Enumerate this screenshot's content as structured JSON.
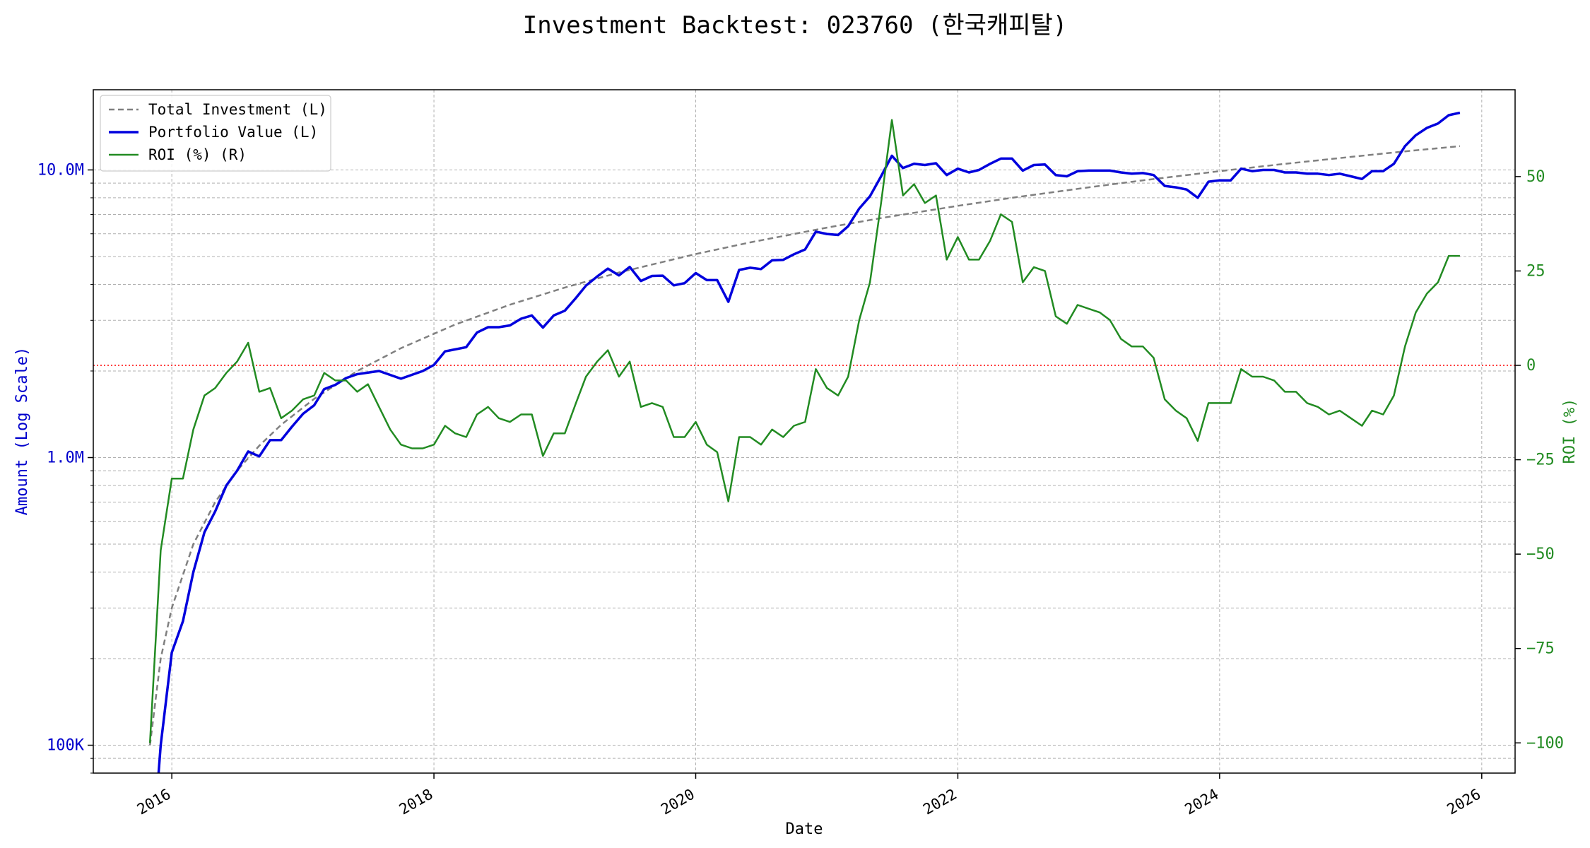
{
  "chart_data": {
    "type": "line",
    "title": "Investment Backtest: 023760 (한국캐피탈)",
    "xlabel": "Date",
    "ylabel_left": "Amount (Log Scale)",
    "ylabel_right": "ROI (%)",
    "x_ticks": [
      "2016",
      "2018",
      "2020",
      "2022",
      "2024",
      "2026"
    ],
    "y_left_scale": "log",
    "y_left_range": [
      80000,
      19000000
    ],
    "y_left_ticks": [
      {
        "value": 100000,
        "label": "100K"
      },
      {
        "value": 1000000,
        "label": "1.0M"
      },
      {
        "value": 10000000,
        "label": "10.0M"
      }
    ],
    "y_right_range": [
      -108,
      73
    ],
    "y_right_ticks": [
      {
        "value": -100,
        "label": "−100"
      },
      {
        "value": -75,
        "label": "−75"
      },
      {
        "value": -50,
        "label": "−50"
      },
      {
        "value": -25,
        "label": "−25"
      },
      {
        "value": 0,
        "label": "0"
      },
      {
        "value": 25,
        "label": "25"
      },
      {
        "value": 50,
        "label": "50"
      }
    ],
    "x_range": [
      "2015-05-27",
      "2026-04-04"
    ],
    "grid": true,
    "legend_position": "top-left",
    "reference_line": {
      "axis": "right",
      "value": 0,
      "color": "#ff0000",
      "style": "dotted"
    },
    "series": [
      {
        "name": "Total Investment (L)",
        "axis": "left",
        "color": "#808080",
        "style": "dashed",
        "x": [
          "2015-11-01",
          "2015-12-01",
          "2016-01-01",
          "2016-03-01",
          "2016-05-01",
          "2016-07-01",
          "2016-09-01",
          "2016-11-01",
          "2017-02-01",
          "2017-06-01",
          "2017-10-01",
          "2018-03-01",
          "2018-08-01",
          "2019-01-01",
          "2019-06-01",
          "2020-01-01",
          "2020-06-01",
          "2021-01-01",
          "2021-06-01",
          "2022-01-01",
          "2022-06-01",
          "2023-01-01",
          "2023-06-01",
          "2024-01-01",
          "2024-06-01",
          "2025-01-01",
          "2025-06-01",
          "2025-11-01"
        ],
        "values": [
          100000,
          200000,
          300000,
          500000,
          700000,
          900000,
          1100000,
          1300000,
          1600000,
          2000000,
          2400000,
          2900000,
          3400000,
          3900000,
          4400000,
          5100000,
          5600000,
          6300000,
          6800000,
          7500000,
          8000000,
          8700000,
          9200000,
          9900000,
          10400000,
          11100000,
          11600000,
          12100000
        ]
      },
      {
        "name": "Portfolio Value (L)",
        "axis": "left",
        "color": "#0000dd",
        "style": "solid",
        "x": [
          "2015-11-25",
          "2015-12-01",
          "2016-01-01",
          "2016-02-01",
          "2016-03-01",
          "2016-04-01",
          "2016-05-01",
          "2016-06-01",
          "2016-07-01",
          "2016-08-01",
          "2016-09-01",
          "2016-10-01",
          "2016-11-01",
          "2016-12-01",
          "2017-01-01",
          "2017-02-01",
          "2017-03-01",
          "2017-04-01",
          "2017-05-01",
          "2017-06-01",
          "2017-08-01",
          "2017-10-01",
          "2017-12-01",
          "2018-01-01",
          "2018-02-01",
          "2018-04-01",
          "2018-05-01",
          "2018-06-01",
          "2018-07-01",
          "2018-08-01",
          "2018-09-01",
          "2018-10-01",
          "2018-11-01",
          "2018-12-01",
          "2019-01-01",
          "2019-02-01",
          "2019-03-01",
          "2019-04-01",
          "2019-05-01",
          "2019-06-01",
          "2019-07-01",
          "2019-08-01",
          "2019-09-01",
          "2019-10-01",
          "2019-11-01",
          "2019-12-01",
          "2020-01-01",
          "2020-02-01",
          "2020-03-01",
          "2020-04-01",
          "2020-05-01",
          "2020-06-01",
          "2020-07-01",
          "2020-08-01",
          "2020-09-01",
          "2020-10-01",
          "2020-11-01",
          "2020-12-01",
          "2021-01-01",
          "2021-02-01",
          "2021-03-01",
          "2021-04-01",
          "2021-05-01",
          "2021-06-01",
          "2021-07-01",
          "2021-08-01",
          "2021-09-01",
          "2021-10-01",
          "2021-11-01",
          "2021-12-01",
          "2022-01-01",
          "2022-02-01",
          "2022-03-01",
          "2022-04-01",
          "2022-05-01",
          "2022-06-01",
          "2022-07-01",
          "2022-08-01",
          "2022-09-01",
          "2022-10-01",
          "2022-11-01",
          "2022-12-01",
          "2023-01-01",
          "2023-02-01",
          "2023-03-01",
          "2023-04-01",
          "2023-05-01",
          "2023-06-01",
          "2023-07-01",
          "2023-08-01",
          "2023-09-01",
          "2023-10-01",
          "2023-11-01",
          "2023-12-01",
          "2024-01-01",
          "2024-02-01",
          "2024-03-01",
          "2024-04-01",
          "2024-05-01",
          "2024-06-01",
          "2024-07-01",
          "2024-08-01",
          "2024-09-01",
          "2024-10-01",
          "2024-11-01",
          "2024-12-01",
          "2025-01-01",
          "2025-02-01",
          "2025-03-01",
          "2025-04-01",
          "2025-05-01",
          "2025-06-01",
          "2025-07-01",
          "2025-08-01",
          "2025-09-01",
          "2025-10-01",
          "2025-11-01"
        ],
        "values": [
          78000,
          100000,
          210000,
          270000,
          400000,
          550000,
          650000,
          800000,
          900000,
          1050000,
          1010000,
          1150000,
          1150000,
          1280000,
          1420000,
          1520000,
          1730000,
          1790000,
          1890000,
          1950000,
          2000000,
          1880000,
          2000000,
          2100000,
          2340000,
          2420000,
          2720000,
          2840000,
          2840000,
          2880000,
          3040000,
          3120000,
          2830000,
          3120000,
          3240000,
          3590000,
          3960000,
          4260000,
          4540000,
          4300000,
          4600000,
          4110000,
          4280000,
          4290000,
          3970000,
          4040000,
          4380000,
          4140000,
          4140000,
          3480000,
          4490000,
          4570000,
          4520000,
          4850000,
          4870000,
          5090000,
          5290000,
          6100000,
          5990000,
          5940000,
          6370000,
          7340000,
          8100000,
          9500000,
          11200000,
          10150000,
          10500000,
          10400000,
          10550000,
          9600000,
          10100000,
          9800000,
          10000000,
          10500000,
          10950000,
          10950000,
          9950000,
          10400000,
          10450000,
          9600000,
          9500000,
          9900000,
          9950000,
          9950000,
          9950000,
          9800000,
          9700000,
          9750000,
          9600000,
          8800000,
          8700000,
          8550000,
          8000000,
          9100000,
          9200000,
          9200000,
          10100000,
          9900000,
          10000000,
          10000000,
          9800000,
          9800000,
          9700000,
          9700000,
          9600000,
          9700000,
          9500000,
          9300000,
          9900000,
          9900000,
          10500000,
          12100000,
          13200000,
          14000000,
          14500000,
          15500000,
          15800000
        ]
      },
      {
        "name": "ROI (%) (R)",
        "axis": "right",
        "color": "#228B22",
        "style": "solid",
        "x": [
          "2015-11-01",
          "2015-12-01",
          "2016-01-01",
          "2016-02-01",
          "2016-03-01",
          "2016-04-01",
          "2016-05-01",
          "2016-06-01",
          "2016-07-01",
          "2016-08-01",
          "2016-09-01",
          "2016-10-01",
          "2016-11-01",
          "2016-12-01",
          "2017-01-01",
          "2017-02-01",
          "2017-03-01",
          "2017-04-01",
          "2017-05-01",
          "2017-06-01",
          "2017-07-01",
          "2017-08-01",
          "2017-09-01",
          "2017-10-01",
          "2017-11-01",
          "2017-12-01",
          "2018-01-01",
          "2018-02-01",
          "2018-03-01",
          "2018-04-01",
          "2018-05-01",
          "2018-06-01",
          "2018-07-01",
          "2018-08-01",
          "2018-09-01",
          "2018-10-01",
          "2018-11-01",
          "2018-12-01",
          "2019-01-01",
          "2019-02-01",
          "2019-03-01",
          "2019-04-01",
          "2019-05-01",
          "2019-06-01",
          "2019-07-01",
          "2019-08-01",
          "2019-09-01",
          "2019-10-01",
          "2019-11-01",
          "2019-12-01",
          "2020-01-01",
          "2020-02-01",
          "2020-03-01",
          "2020-04-01",
          "2020-05-01",
          "2020-06-01",
          "2020-07-01",
          "2020-08-01",
          "2020-09-01",
          "2020-10-01",
          "2020-11-01",
          "2020-12-01",
          "2021-01-01",
          "2021-02-01",
          "2021-03-01",
          "2021-04-01",
          "2021-05-01",
          "2021-06-01",
          "2021-07-01",
          "2021-08-01",
          "2021-09-01",
          "2021-10-01",
          "2021-11-01",
          "2021-12-01",
          "2022-01-01",
          "2022-02-01",
          "2022-03-01",
          "2022-04-01",
          "2022-05-01",
          "2022-06-01",
          "2022-07-01",
          "2022-08-01",
          "2022-09-01",
          "2022-10-01",
          "2022-11-01",
          "2022-12-01",
          "2023-01-01",
          "2023-02-01",
          "2023-03-01",
          "2023-04-01",
          "2023-05-01",
          "2023-06-01",
          "2023-07-01",
          "2023-08-01",
          "2023-09-01",
          "2023-10-01",
          "2023-11-01",
          "2023-12-01",
          "2024-01-01",
          "2024-02-01",
          "2024-03-01",
          "2024-04-01",
          "2024-05-01",
          "2024-06-01",
          "2024-07-01",
          "2024-08-01",
          "2024-09-01",
          "2024-10-01",
          "2024-11-01",
          "2024-12-01",
          "2025-01-01",
          "2025-02-01",
          "2025-03-01",
          "2025-04-01",
          "2025-05-01",
          "2025-06-01",
          "2025-07-01",
          "2025-08-01",
          "2025-09-01",
          "2025-10-01",
          "2025-11-01"
        ],
        "values": [
          -100,
          -49,
          -30,
          -30,
          -17,
          -8,
          -6,
          -2,
          1,
          6,
          -7,
          -6,
          -14,
          -12,
          -9,
          -8,
          -2,
          -4,
          -4,
          -7,
          -5,
          -11,
          -17,
          -21,
          -22,
          -22,
          -21,
          -16,
          -18,
          -19,
          -13,
          -11,
          -14,
          -15,
          -13,
          -13,
          -24,
          -18,
          -18,
          -10,
          -3,
          1,
          4,
          -3,
          1,
          -11,
          -10,
          -11,
          -19,
          -19,
          -15,
          -21,
          -23,
          -36,
          -19,
          -19,
          -21,
          -17,
          -19,
          -16,
          -15,
          -1,
          -6,
          -8,
          -3,
          12,
          22,
          43,
          65,
          45,
          48,
          43,
          45,
          28,
          34,
          28,
          28,
          33,
          40,
          38,
          22,
          26,
          25,
          13,
          11,
          16,
          15,
          14,
          12,
          7,
          5,
          5,
          2,
          -9,
          -12,
          -14,
          -20,
          -10,
          -10,
          -10,
          -1,
          -3,
          -3,
          -4,
          -7,
          -7,
          -10,
          -11,
          -13,
          -12,
          -14,
          -16,
          -12,
          -13,
          -8,
          5,
          14,
          19,
          22,
          29,
          29
        ]
      }
    ]
  }
}
